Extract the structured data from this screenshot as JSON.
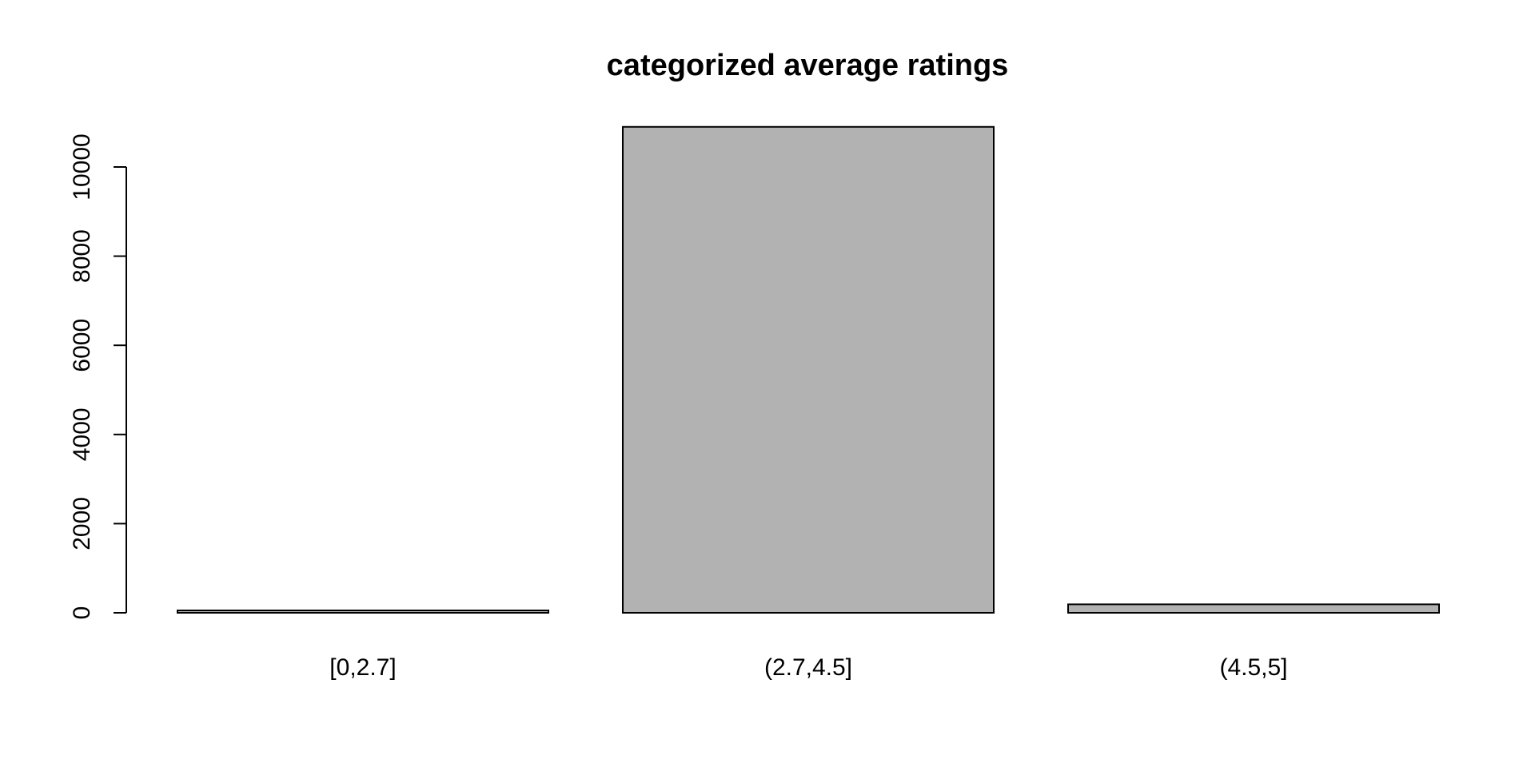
{
  "chart_data": {
    "type": "bar",
    "title": "categorized average ratings",
    "xlabel": "",
    "ylabel": "",
    "categories": [
      "[0,2.7]",
      "(2.7,4.5]",
      "(4.5,5]"
    ],
    "values": [
      25,
      10900,
      190
    ],
    "yticks": [
      "0",
      "2000",
      "4000",
      "6000",
      "8000",
      "10000"
    ],
    "ylim": [
      0,
      10000
    ],
    "bar_color": "#b2b2b2",
    "grid": false,
    "legend": "none"
  }
}
